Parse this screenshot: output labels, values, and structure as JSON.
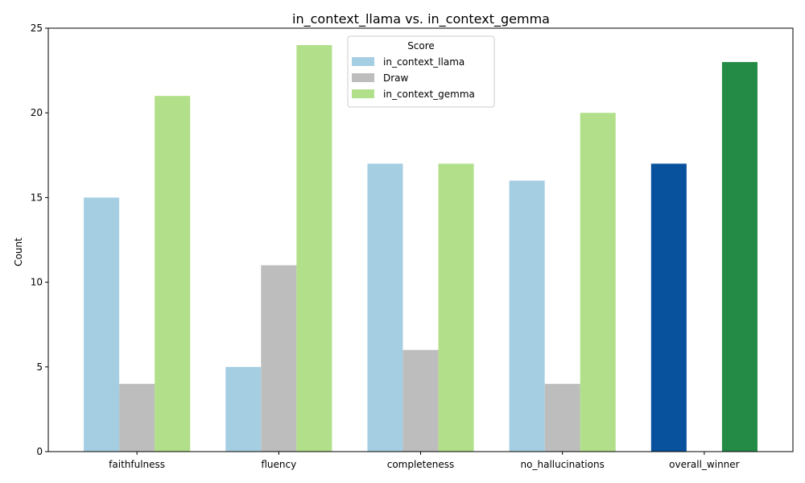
{
  "chart_data": {
    "type": "bar",
    "title": "in_context_llama vs. in_context_gemma",
    "xlabel": "",
    "ylabel": "Count",
    "ylim": [
      0,
      25
    ],
    "yticks": [
      0,
      5,
      10,
      15,
      20,
      25
    ],
    "categories": [
      "faithfulness",
      "fluency",
      "completeness",
      "no_hallucinations",
      "overall_winner"
    ],
    "legend": {
      "title": "Score",
      "placement": "top-center"
    },
    "series": [
      {
        "name": "in_context_llama",
        "color": "#a6cee3",
        "values": [
          15,
          5,
          17,
          16,
          17
        ]
      },
      {
        "name": "Draw",
        "color": "#bdbdbd",
        "values": [
          4,
          11,
          6,
          4,
          0
        ]
      },
      {
        "name": "in_context_gemma",
        "color": "#b2df8a",
        "values": [
          21,
          24,
          17,
          20,
          23
        ]
      }
    ],
    "highlight_colors": {
      "in_context_llama": "#08519c",
      "in_context_gemma": "#238b45"
    },
    "highlight_category": "overall_winner",
    "grid": false
  }
}
